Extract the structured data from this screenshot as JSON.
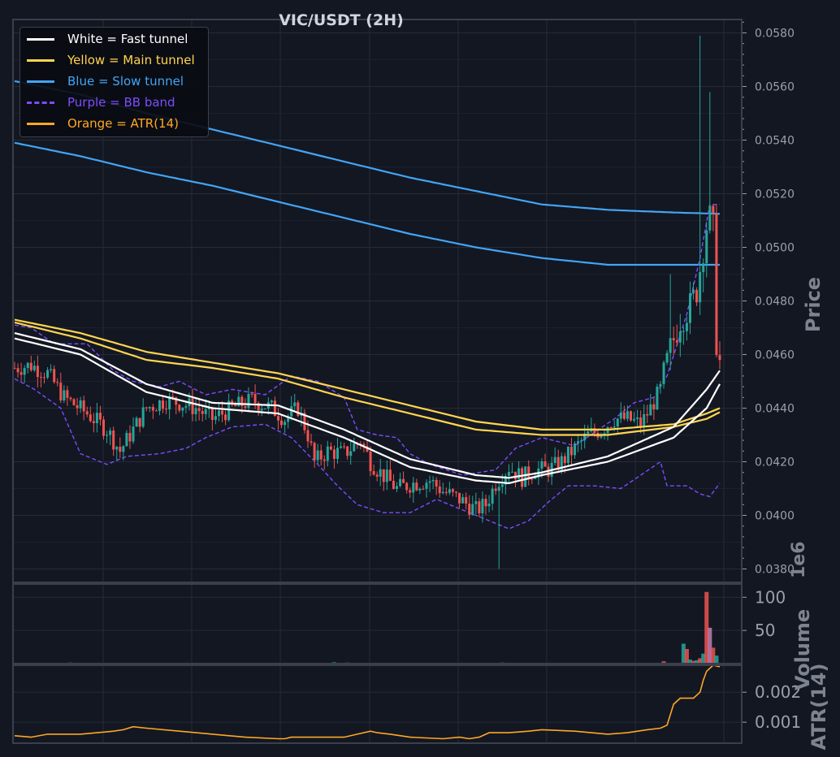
{
  "chart_data": {
    "type": "candlestick",
    "title": "VIC/USDT (2H)",
    "colors": {
      "background": "#131722",
      "up": "#26a69a",
      "down": "#ef5350",
      "fast_tunnel": "#ffffff",
      "main_tunnel": "#ffd54f",
      "slow_tunnel": "#42a5f5",
      "bb_band": "#7c4dff",
      "atr": "#ffa726",
      "axis_text": "#9aa0aa",
      "label_text": "#7d838f",
      "grid": "#262b36"
    },
    "legend": {
      "placement": "top-left",
      "entries": [
        {
          "label": "White = Fast tunnel",
          "color": "#ffffff",
          "style": "solid"
        },
        {
          "label": "Yellow = Main tunnel",
          "color": "#ffd54f",
          "style": "solid"
        },
        {
          "label": "Blue = Slow tunnel",
          "color": "#42a5f5",
          "style": "solid"
        },
        {
          "label": "Purple = BB band",
          "color": "#7c4dff",
          "style": "dashed"
        },
        {
          "label": "Orange = ATR(14)",
          "color": "#ffa726",
          "style": "solid"
        }
      ]
    },
    "panels": {
      "price": {
        "ylabel": "Price",
        "ylim": [
          0.0375,
          0.0585
        ],
        "yticks": [
          "0.0380",
          "0.0400",
          "0.0420",
          "0.0440",
          "0.0460",
          "0.0480",
          "0.0500",
          "0.0520",
          "0.0540",
          "0.0560",
          "0.0580"
        ],
        "grid": true
      },
      "volume": {
        "ylabel": "Volume",
        "offset_label": "1e6",
        "ylim": [
          0,
          120
        ],
        "yticks": [
          "50",
          "100"
        ]
      },
      "atr": {
        "ylabel": "ATR(14)",
        "ylim": [
          0.0003,
          0.0029
        ],
        "yticks": [
          "0.001",
          "0.002"
        ]
      }
    },
    "approx_candle_count": 160,
    "close_anchors": [
      [
        0,
        0.0455
      ],
      [
        5,
        0.0456
      ],
      [
        10,
        0.0453
      ],
      [
        15,
        0.0444
      ],
      [
        22,
        0.0438
      ],
      [
        28,
        0.0432
      ],
      [
        32,
        0.0424
      ],
      [
        36,
        0.0432
      ],
      [
        40,
        0.044
      ],
      [
        46,
        0.0443
      ],
      [
        50,
        0.0442
      ],
      [
        55,
        0.044
      ],
      [
        60,
        0.0436
      ],
      [
        66,
        0.044
      ],
      [
        72,
        0.0443
      ],
      [
        78,
        0.044
      ],
      [
        82,
        0.0436
      ],
      [
        86,
        0.044
      ],
      [
        89,
        0.043
      ],
      [
        91,
        0.042
      ],
      [
        95,
        0.0424
      ],
      [
        100,
        0.0423
      ],
      [
        105,
        0.0428
      ],
      [
        108,
        0.042
      ],
      [
        111,
        0.0416
      ],
      [
        116,
        0.041
      ],
      [
        121,
        0.0412
      ],
      [
        126,
        0.0413
      ],
      [
        130,
        0.0409
      ],
      [
        135,
        0.0406
      ],
      [
        140,
        0.0402
      ],
      [
        143,
        0.0404
      ],
      [
        146,
        0.0412
      ],
      [
        150,
        0.0418
      ],
      [
        154,
        0.0414
      ],
      [
        158,
        0.0417
      ],
      [
        162,
        0.0417
      ],
      [
        166,
        0.042
      ],
      [
        170,
        0.0425
      ],
      [
        174,
        0.043
      ],
      [
        178,
        0.0432
      ],
      [
        182,
        0.0436
      ],
      [
        186,
        0.0436
      ],
      [
        190,
        0.0434
      ],
      [
        193,
        0.044
      ],
      [
        196,
        0.0447
      ],
      [
        199,
        0.0462
      ],
      [
        202,
        0.0473
      ],
      [
        205,
        0.0478
      ],
      [
        207,
        0.0484
      ],
      [
        209,
        0.05
      ],
      [
        210,
        0.0508
      ],
      [
        211,
        0.0511
      ],
      [
        212,
        0.0507
      ],
      [
        213,
        0.0465
      ],
      [
        214,
        0.0457
      ]
    ],
    "spikes": [
      {
        "index": 199,
        "high": 0.049
      },
      {
        "index": 208,
        "high": 0.0579
      },
      {
        "index": 211,
        "high": 0.0558
      },
      {
        "index": 147,
        "low": 0.038
      }
    ],
    "fast_tunnel": {
      "upper": [
        [
          0,
          0.0468
        ],
        [
          20,
          0.0462
        ],
        [
          40,
          0.0449
        ],
        [
          60,
          0.0442
        ],
        [
          80,
          0.0441
        ],
        [
          100,
          0.0432
        ],
        [
          120,
          0.0421
        ],
        [
          140,
          0.0415
        ],
        [
          150,
          0.0414
        ],
        [
          160,
          0.0416
        ],
        [
          180,
          0.0422
        ],
        [
          200,
          0.0433
        ],
        [
          210,
          0.0447
        ],
        [
          214,
          0.0454
        ]
      ],
      "lower": [
        [
          0,
          0.0466
        ],
        [
          20,
          0.046
        ],
        [
          40,
          0.0446
        ],
        [
          60,
          0.044
        ],
        [
          80,
          0.0438
        ],
        [
          100,
          0.0429
        ],
        [
          120,
          0.0418
        ],
        [
          140,
          0.0413
        ],
        [
          150,
          0.0412
        ],
        [
          160,
          0.0415
        ],
        [
          180,
          0.042
        ],
        [
          200,
          0.0429
        ],
        [
          210,
          0.044
        ],
        [
          214,
          0.0449
        ]
      ]
    },
    "main_tunnel": {
      "upper": [
        [
          0,
          0.0473
        ],
        [
          20,
          0.0468
        ],
        [
          40,
          0.0461
        ],
        [
          60,
          0.0457
        ],
        [
          80,
          0.0453
        ],
        [
          100,
          0.0447
        ],
        [
          120,
          0.0441
        ],
        [
          140,
          0.0435
        ],
        [
          160,
          0.0432
        ],
        [
          180,
          0.0432
        ],
        [
          200,
          0.0434
        ],
        [
          210,
          0.0438
        ],
        [
          214,
          0.044
        ]
      ],
      "lower": [
        [
          0,
          0.0472
        ],
        [
          20,
          0.0466
        ],
        [
          40,
          0.0458
        ],
        [
          60,
          0.0455
        ],
        [
          80,
          0.0451
        ],
        [
          100,
          0.0444
        ],
        [
          120,
          0.0438
        ],
        [
          140,
          0.0432
        ],
        [
          160,
          0.043
        ],
        [
          180,
          0.043
        ],
        [
          200,
          0.0433
        ],
        [
          210,
          0.0436
        ],
        [
          214,
          0.04385
        ]
      ]
    },
    "slow_tunnel": {
      "upper": [
        [
          0,
          0.0562
        ],
        [
          20,
          0.0557
        ],
        [
          40,
          0.055
        ],
        [
          60,
          0.0544
        ],
        [
          80,
          0.0538
        ],
        [
          100,
          0.0532
        ],
        [
          120,
          0.0526
        ],
        [
          140,
          0.0521
        ],
        [
          160,
          0.0516
        ],
        [
          180,
          0.0514
        ],
        [
          200,
          0.0513
        ],
        [
          214,
          0.05125
        ]
      ],
      "lower": [
        [
          0,
          0.0539
        ],
        [
          20,
          0.0534
        ],
        [
          40,
          0.0528
        ],
        [
          60,
          0.0523
        ],
        [
          80,
          0.0517
        ],
        [
          100,
          0.0511
        ],
        [
          120,
          0.0505
        ],
        [
          140,
          0.05
        ],
        [
          160,
          0.0496
        ],
        [
          180,
          0.04935
        ],
        [
          200,
          0.04935
        ],
        [
          214,
          0.04935
        ]
      ]
    },
    "bb_band": {
      "upper": [
        [
          0,
          0.0471
        ],
        [
          5,
          0.047
        ],
        [
          12,
          0.0464
        ],
        [
          22,
          0.0464
        ],
        [
          30,
          0.0454
        ],
        [
          36,
          0.045
        ],
        [
          44,
          0.0448
        ],
        [
          50,
          0.045
        ],
        [
          58,
          0.0445
        ],
        [
          66,
          0.0447
        ],
        [
          76,
          0.0445
        ],
        [
          84,
          0.0452
        ],
        [
          92,
          0.045
        ],
        [
          100,
          0.0444
        ],
        [
          104,
          0.0432
        ],
        [
          110,
          0.043
        ],
        [
          116,
          0.0429
        ],
        [
          120,
          0.0423
        ],
        [
          126,
          0.0419
        ],
        [
          136,
          0.0415
        ],
        [
          146,
          0.0417
        ],
        [
          152,
          0.0425
        ],
        [
          160,
          0.0429
        ],
        [
          170,
          0.0426
        ],
        [
          176,
          0.0431
        ],
        [
          182,
          0.0436
        ],
        [
          188,
          0.0442
        ],
        [
          194,
          0.0444
        ],
        [
          198,
          0.0452
        ],
        [
          204,
          0.0475
        ],
        [
          208,
          0.0496
        ],
        [
          211,
          0.0516
        ],
        [
          214,
          0.0516
        ]
      ],
      "lower": [
        [
          0,
          0.0451
        ],
        [
          6,
          0.0447
        ],
        [
          14,
          0.044
        ],
        [
          20,
          0.0423
        ],
        [
          28,
          0.0419
        ],
        [
          34,
          0.0422
        ],
        [
          44,
          0.0423
        ],
        [
          52,
          0.0425
        ],
        [
          58,
          0.0429
        ],
        [
          66,
          0.0433
        ],
        [
          76,
          0.0434
        ],
        [
          84,
          0.0429
        ],
        [
          92,
          0.0419
        ],
        [
          98,
          0.0411
        ],
        [
          104,
          0.0404
        ],
        [
          112,
          0.0401
        ],
        [
          120,
          0.0401
        ],
        [
          128,
          0.0406
        ],
        [
          136,
          0.0402
        ],
        [
          144,
          0.0398
        ],
        [
          150,
          0.0395
        ],
        [
          156,
          0.0398
        ],
        [
          162,
          0.0405
        ],
        [
          168,
          0.0411
        ],
        [
          176,
          0.0411
        ],
        [
          184,
          0.041
        ],
        [
          190,
          0.0415
        ],
        [
          196,
          0.042
        ],
        [
          198,
          0.0411
        ],
        [
          204,
          0.0411
        ],
        [
          208,
          0.0408
        ],
        [
          211,
          0.0407
        ],
        [
          214,
          0.0412
        ]
      ]
    },
    "volume_spikes": [
      {
        "index": 17,
        "value": 1.5
      },
      {
        "index": 55,
        "value": 1.2
      },
      {
        "index": 97,
        "value": 2.0
      },
      {
        "index": 101,
        "value": 1.5
      },
      {
        "index": 120,
        "value": 1.0
      },
      {
        "index": 148,
        "value": 1.5
      },
      {
        "index": 182,
        "value": 1.2
      },
      {
        "index": 197,
        "value": 3.5
      },
      {
        "index": 203,
        "value": 30
      },
      {
        "index": 204,
        "value": 22
      },
      {
        "index": 205,
        "value": 6
      },
      {
        "index": 206,
        "value": 4
      },
      {
        "index": 207,
        "value": 5
      },
      {
        "index": 208,
        "value": 8
      },
      {
        "index": 209,
        "value": 15
      },
      {
        "index": 210,
        "value": 108
      },
      {
        "index": 211,
        "value": 54
      },
      {
        "index": 212,
        "value": 24
      },
      {
        "index": 213,
        "value": 12
      }
    ],
    "atr": [
      [
        0,
        0.00055
      ],
      [
        5,
        0.0005
      ],
      [
        10,
        0.0006
      ],
      [
        15,
        0.0006
      ],
      [
        20,
        0.0006
      ],
      [
        25,
        0.00065
      ],
      [
        30,
        0.0007
      ],
      [
        33,
        0.00075
      ],
      [
        36,
        0.00085
      ],
      [
        40,
        0.0008
      ],
      [
        50,
        0.0007
      ],
      [
        60,
        0.0006
      ],
      [
        70,
        0.0005
      ],
      [
        80,
        0.00045
      ],
      [
        82,
        0.00045
      ],
      [
        84,
        0.0005
      ],
      [
        96,
        0.0005
      ],
      [
        100,
        0.0005
      ],
      [
        104,
        0.0006
      ],
      [
        108,
        0.0007
      ],
      [
        110,
        0.00065
      ],
      [
        114,
        0.0006
      ],
      [
        120,
        0.0005
      ],
      [
        130,
        0.00045
      ],
      [
        135,
        0.0005
      ],
      [
        138,
        0.00045
      ],
      [
        141,
        0.0005
      ],
      [
        144,
        0.00065
      ],
      [
        150,
        0.00065
      ],
      [
        156,
        0.0007
      ],
      [
        160,
        0.00075
      ],
      [
        170,
        0.0007
      ],
      [
        180,
        0.0006
      ],
      [
        186,
        0.00065
      ],
      [
        192,
        0.00075
      ],
      [
        196,
        0.0008
      ],
      [
        198,
        0.0009
      ],
      [
        200,
        0.0016
      ],
      [
        202,
        0.0018
      ],
      [
        206,
        0.0018
      ],
      [
        208,
        0.002
      ],
      [
        209,
        0.0024
      ],
      [
        210,
        0.0027
      ],
      [
        212,
        0.0029
      ],
      [
        214,
        0.00285
      ]
    ]
  }
}
